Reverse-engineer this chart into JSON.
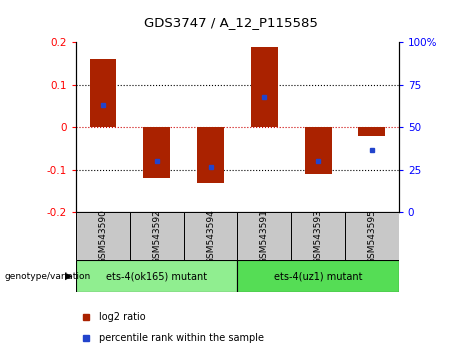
{
  "title": "GDS3747 / A_12_P115585",
  "samples": [
    "GSM543590",
    "GSM543592",
    "GSM543594",
    "GSM543591",
    "GSM543593",
    "GSM543595"
  ],
  "log2_ratios": [
    0.16,
    -0.12,
    -0.13,
    0.19,
    -0.11,
    -0.02
  ],
  "percentile_ranks": [
    63,
    30,
    27,
    68,
    30,
    37
  ],
  "bar_color": "#AA2200",
  "dot_color": "#2244CC",
  "ylim": [
    -0.2,
    0.2
  ],
  "yticks_left": [
    -0.2,
    -0.1,
    0,
    0.1,
    0.2
  ],
  "yticks_right": [
    0,
    25,
    50,
    75,
    100
  ],
  "zero_line_color": "#CC0000",
  "group1_label": "ets-4(ok165) mutant",
  "group2_label": "ets-4(uz1) mutant",
  "group1_indices": [
    0,
    1,
    2
  ],
  "group2_indices": [
    3,
    4,
    5
  ],
  "sample_label_bg": "#C8C8C8",
  "group1_bg": "#90EE90",
  "group2_bg": "#55DD55",
  "genotype_label": "genotype/variation",
  "legend_bar_label": "log2 ratio",
  "legend_dot_label": "percentile rank within the sample",
  "bar_width": 0.5
}
